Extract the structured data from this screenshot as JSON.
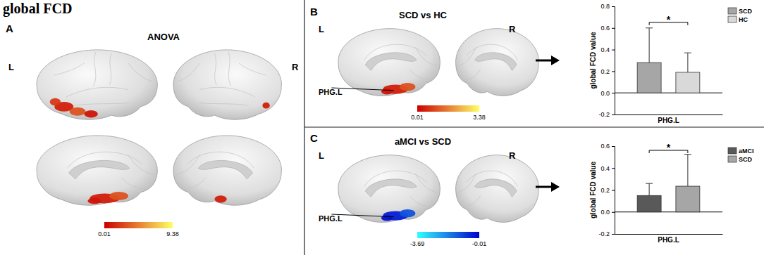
{
  "figure": {
    "title": "global FCD"
  },
  "chart_data": [
    {
      "type": "brain_map",
      "panel": "A",
      "title": "ANOVA",
      "hemisphere_labels": [
        "L",
        "R"
      ],
      "colorbar": {
        "range": [
          0.01,
          9.38
        ],
        "ticks": [
          0.01,
          9.38
        ],
        "colors": [
          "#cc0000",
          "#ffff66"
        ]
      }
    },
    {
      "type": "brain_map",
      "panel": "B",
      "title": "SCD vs HC",
      "hemisphere_labels": [
        "L",
        "R"
      ],
      "region_label": "PHG.L",
      "colorbar": {
        "range": [
          0.01,
          3.38
        ],
        "ticks": [
          0.01,
          3.38
        ],
        "colors": [
          "#cc0000",
          "#ffff66"
        ]
      }
    },
    {
      "type": "bar",
      "categories": [
        "PHG.L"
      ],
      "series": [
        {
          "name": "SCD",
          "color": "#a6a6a6",
          "values": [
            0.28
          ],
          "errors": [
            0.32
          ]
        },
        {
          "name": "HC",
          "color": "#d9d9d9",
          "values": [
            0.19
          ],
          "errors": [
            0.18
          ]
        }
      ],
      "y_label": "global FCD value",
      "ylim": [
        -0.2,
        0.8
      ],
      "yticks": [
        -0.2,
        {
          "value": 0,
          "label": "0.0"
        },
        0.2,
        0.4,
        0.6,
        0.8
      ],
      "legend": "top-right",
      "annotation": "*"
    },
    {
      "type": "brain_map",
      "panel": "C",
      "title": "aMCI vs SCD",
      "hemisphere_labels": [
        "L",
        "R"
      ],
      "region_label": "PHG.L",
      "colorbar": {
        "range": [
          -3.69,
          -0.01
        ],
        "ticks": [
          -3.69,
          -0.01
        ],
        "colors": [
          "#33ffff",
          "#0000cc"
        ]
      }
    },
    {
      "type": "bar",
      "categories": [
        "PHG.L"
      ],
      "series": [
        {
          "name": "aMCI",
          "color": "#595959",
          "values": [
            0.15
          ],
          "errors": [
            0.11
          ]
        },
        {
          "name": "SCD",
          "color": "#a6a6a6",
          "values": [
            0.235
          ],
          "errors": [
            0.29
          ]
        }
      ],
      "y_label": "global FCD value",
      "ylim": [
        -0.2,
        0.6
      ],
      "yticks": [
        -0.2,
        {
          "value": 0,
          "label": "0.0"
        },
        0.2,
        0.4,
        0.6
      ],
      "legend": "top-right",
      "annotation": "*"
    }
  ]
}
